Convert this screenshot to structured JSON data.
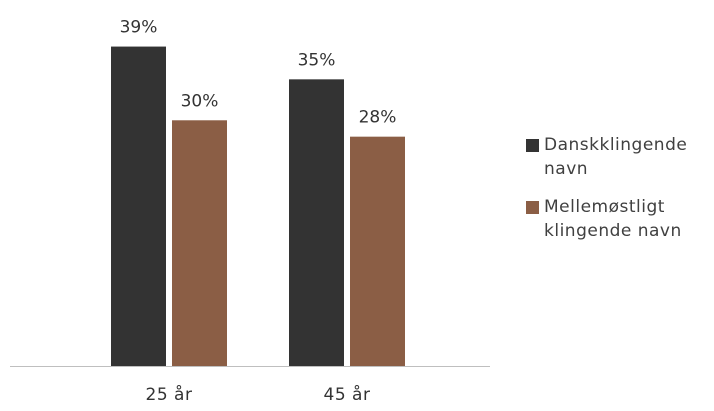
{
  "chart_data": {
    "type": "bar",
    "categories": [
      "25 år",
      "45 år"
    ],
    "series": [
      {
        "name": "Danskklingende navn",
        "legend_lines": [
          "Danskklingende",
          "navn"
        ],
        "values": [
          39,
          35
        ],
        "labels": [
          "39%",
          "35%"
        ],
        "color": "#333333"
      },
      {
        "name": "Mellemøstligt klingende navn",
        "legend_lines": [
          "Mellemøstligt",
          "klingende navn"
        ],
        "values": [
          30,
          28
        ],
        "labels": [
          "30%",
          "28%"
        ],
        "color": "#8B5E45"
      }
    ],
    "ylim": [
      0,
      42
    ],
    "grid": false,
    "legend_position": "right",
    "axis_line_color": "#BFBFBF"
  }
}
